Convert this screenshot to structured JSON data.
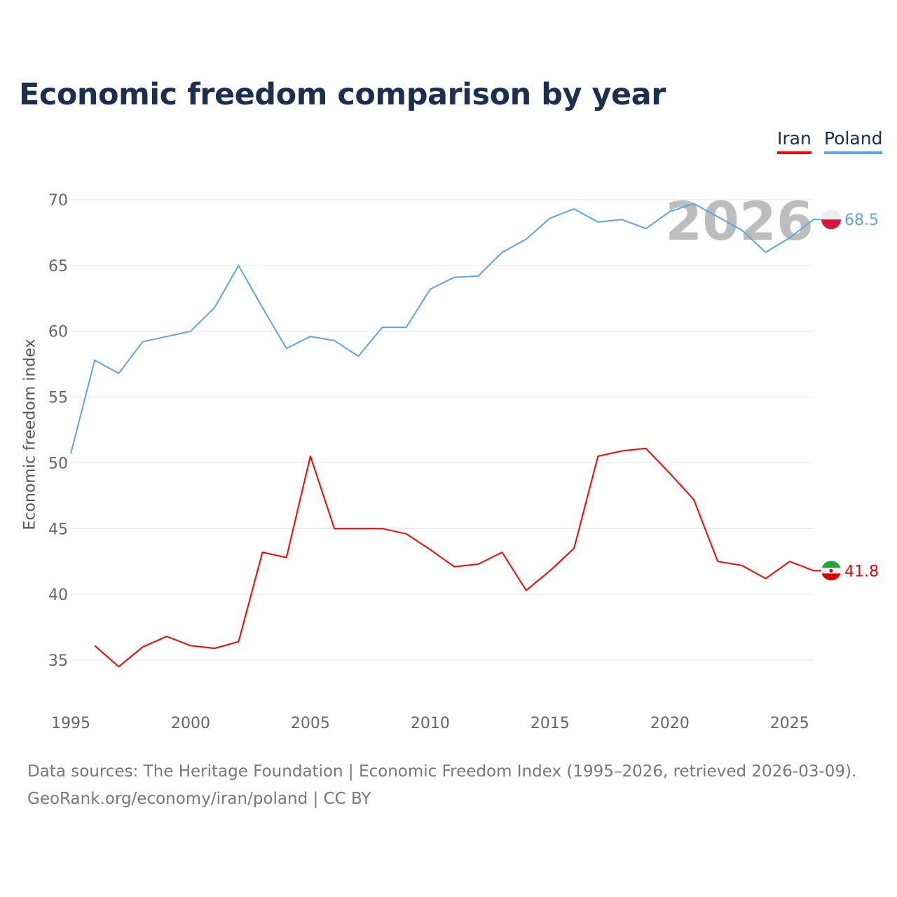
{
  "title": "Economic freedom comparison by year",
  "watermark_year": "2026",
  "footer": {
    "line1": "Data sources: The Heritage Foundation | Economic Freedom Index (1995–2026, retrieved 2026-03-09).",
    "line2": "GeoRank.org/economy/iran/poland | CC BY"
  },
  "chart_data": {
    "type": "line",
    "title": "Economic freedom comparison by year",
    "xlabel": "",
    "ylabel": "Economic freedom index",
    "xlim": [
      1995,
      2026
    ],
    "ylim": [
      32,
      72
    ],
    "xticks": [
      1995,
      2000,
      2005,
      2010,
      2015,
      2020,
      2025
    ],
    "yticks": [
      35,
      40,
      45,
      50,
      55,
      60,
      65,
      70
    ],
    "grid": true,
    "legend_position": "top-right",
    "x": [
      1995,
      1996,
      1997,
      1998,
      1999,
      2000,
      2001,
      2002,
      2003,
      2004,
      2005,
      2006,
      2007,
      2008,
      2009,
      2010,
      2011,
      2012,
      2013,
      2014,
      2015,
      2016,
      2017,
      2018,
      2019,
      2020,
      2021,
      2022,
      2023,
      2024,
      2025,
      2026
    ],
    "series": [
      {
        "name": "Iran",
        "color": "#ff0000",
        "end_label": "41.8",
        "flag": "iran-flag",
        "values": [
          null,
          36.1,
          34.5,
          36.0,
          36.8,
          36.1,
          35.9,
          36.4,
          43.2,
          42.8,
          50.5,
          45.0,
          45.0,
          45.0,
          44.6,
          43.4,
          42.1,
          42.3,
          43.2,
          40.3,
          41.8,
          43.5,
          50.5,
          50.9,
          51.1,
          49.2,
          47.2,
          42.5,
          42.2,
          41.2,
          42.5,
          41.8
        ]
      },
      {
        "name": "Poland",
        "color": "#5ea3e8",
        "end_label": "68.5",
        "flag": "poland-flag",
        "values": [
          50.7,
          57.8,
          56.8,
          59.2,
          59.6,
          60.0,
          61.8,
          65.0,
          61.8,
          58.7,
          59.6,
          59.3,
          58.1,
          60.3,
          60.3,
          63.2,
          64.1,
          64.2,
          66.0,
          67.0,
          68.6,
          69.3,
          68.3,
          68.5,
          67.8,
          69.1,
          69.7,
          68.7,
          67.7,
          66.0,
          67.1,
          68.5
        ]
      }
    ]
  }
}
